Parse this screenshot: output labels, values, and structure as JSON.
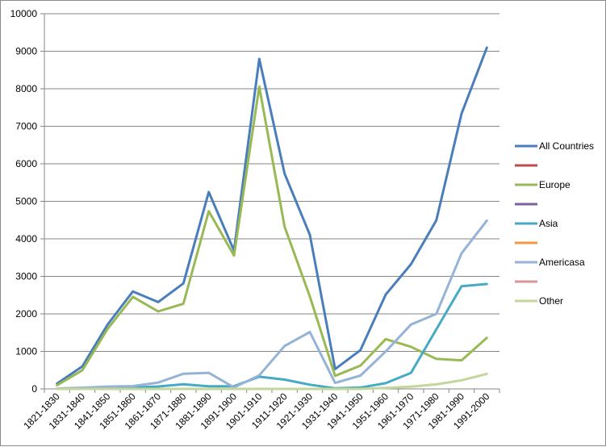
{
  "chart_data": {
    "type": "line",
    "categories": [
      "1821-1830",
      "1831-1840",
      "1841-1850",
      "1851-1860",
      "1861-1870",
      "1871-1880",
      "1881-1890",
      "1891-1900",
      "1901-1910",
      "1911-1920",
      "1921-1930",
      "1931-1940",
      "1941-1950",
      "1951-1960",
      "1961-1970",
      "1971-1980",
      "1981-1990",
      "1991-2000"
    ],
    "ylim": [
      0,
      10000
    ],
    "yticks": [
      0,
      1000,
      2000,
      3000,
      4000,
      5000,
      6000,
      7000,
      8000,
      9000,
      10000
    ],
    "grid": true,
    "legend_position": "right",
    "series": [
      {
        "name": "All Countries",
        "color": "#4a7ebb",
        "values": [
          143,
          599,
          1713,
          2598,
          2315,
          2812,
          5247,
          3688,
          8795,
          5736,
          4107,
          528,
          1035,
          2515,
          3322,
          4493,
          7338,
          9095
        ]
      },
      {
        "name": "",
        "color": "#be4b48",
        "values": null
      },
      {
        "name": "Europe",
        "color": "#98b954",
        "values": [
          99,
          496,
          1597,
          2453,
          2065,
          2272,
          4735,
          3555,
          8056,
          4322,
          2463,
          348,
          621,
          1326,
          1123,
          800,
          762,
          1359
        ]
      },
      {
        "name": "",
        "color": "#7d60a0",
        "values": null
      },
      {
        "name": "Asia",
        "color": "#46aac5",
        "values": [
          0,
          0,
          0,
          41,
          65,
          124,
          69,
          71,
          324,
          247,
          112,
          17,
          37,
          153,
          428,
          1588,
          2738,
          2795
        ]
      },
      {
        "name": "",
        "color": "#f79646",
        "values": null
      },
      {
        "name": "Americasa",
        "color": "#95b3d7",
        "values": [
          11,
          33,
          62,
          75,
          167,
          404,
          427,
          39,
          362,
          1144,
          1517,
          160,
          355,
          997,
          1716,
          2000,
          3616,
          4486
        ]
      },
      {
        "name": "",
        "color": "#d99694",
        "values": null
      },
      {
        "name": "Other",
        "color": "#c3d69b",
        "values": [
          0,
          0,
          0,
          0,
          0,
          0,
          0,
          0,
          0,
          0,
          0,
          0,
          0,
          28,
          60,
          120,
          230,
          400
        ]
      }
    ]
  }
}
